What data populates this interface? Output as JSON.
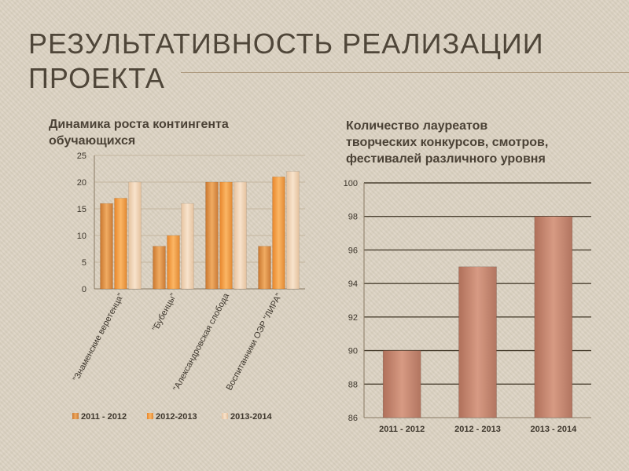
{
  "slide": {
    "title": "РЕЗУЛЬТАТИВНОСТЬ РЕАЛИЗАЦИИ ПРОЕКТА"
  },
  "chart_data": [
    {
      "type": "bar",
      "title": "Динамика роста контингента\n обучающихся",
      "categories": [
        "\"Знаменские веретенца\"",
        "\"Бубенцы\"",
        "\"Александровская слобода",
        "Воспитанники ОЭР \"ЛИРА\""
      ],
      "series": [
        {
          "name": "2011 - 2012",
          "values": [
            16,
            8,
            20,
            8
          ],
          "color": "#e39a4c"
        },
        {
          "name": "2012-2013",
          "values": [
            17,
            10,
            20,
            21
          ],
          "color": "#f2a34b"
        },
        {
          "name": "2013-2014",
          "values": [
            20,
            16,
            20,
            22
          ],
          "color": "#f0d2b4"
        }
      ],
      "ylim": [
        0,
        25
      ],
      "yticks": [
        0,
        5,
        10,
        15,
        20,
        25
      ],
      "grid": true,
      "legend": "bottom"
    },
    {
      "type": "bar",
      "title": "Количество лауреатов\n творческих конкурсов, смотров,\n фестивалей различного уровня",
      "categories": [
        "2011 - 2012",
        "2012 - 2013",
        "2013 - 2014"
      ],
      "values": [
        90,
        95,
        98
      ],
      "color": "#c98a74",
      "ylim": [
        86,
        100
      ],
      "yticks": [
        86,
        88,
        90,
        92,
        94,
        96,
        98,
        100
      ],
      "grid": true,
      "legend": "none"
    }
  ]
}
